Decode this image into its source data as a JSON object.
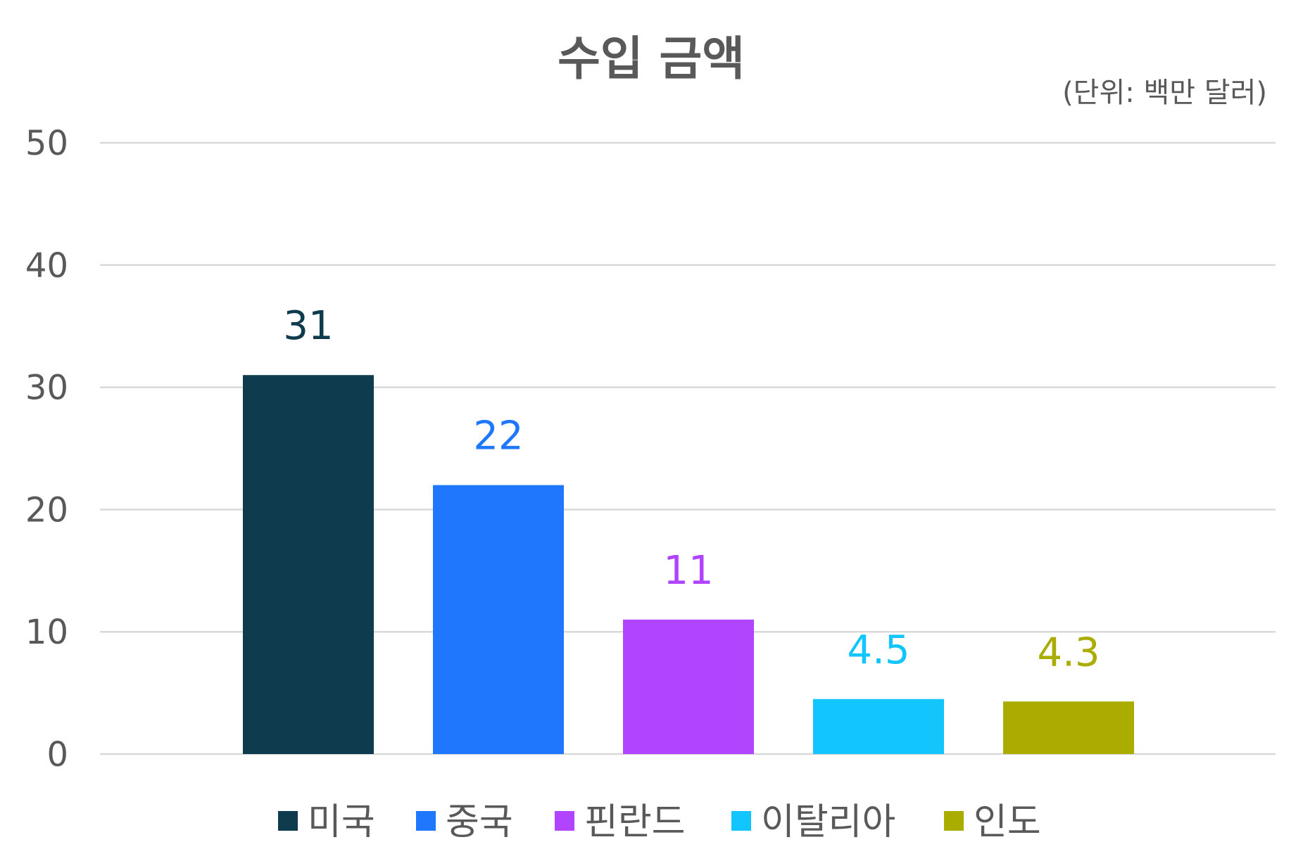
{
  "chart_data": {
    "type": "bar",
    "title": "수입 금액",
    "unit_note": "(단위: 백만 달러)",
    "categories": [
      "미국",
      "중국",
      "핀란드",
      "이탈리아",
      "인도"
    ],
    "values": [
      31,
      22,
      11,
      4.5,
      4.3
    ],
    "data_labels": [
      "31",
      "22",
      "11",
      "4.5",
      "4.3"
    ],
    "colors": [
      "#0f3b4f",
      "#1f77fe",
      "#b144fe",
      "#12c5fd",
      "#aaac00"
    ],
    "ylim": [
      0,
      50
    ],
    "yticks": [
      0,
      10,
      20,
      30,
      40,
      50
    ],
    "grid": true,
    "legend": "bottom",
    "xlabel": "",
    "ylabel": ""
  }
}
